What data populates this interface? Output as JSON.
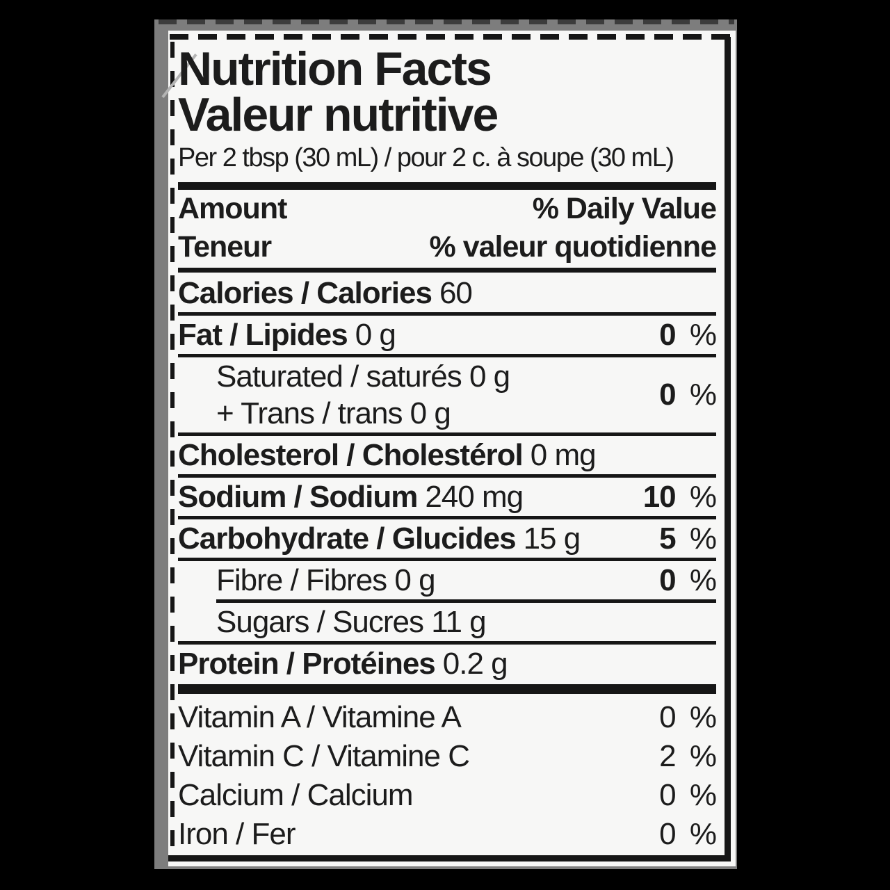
{
  "label": {
    "title_en": "Nutrition Facts",
    "title_fr": "Valeur nutritive",
    "serving": "Per 2 tbsp (30 mL) / pour 2 c. à soupe (30 mL)",
    "percent_sign": "%",
    "header": {
      "amount_en": "Amount",
      "daily_value_en": "% Daily Value",
      "amount_fr": "Teneur",
      "daily_value_fr": "% valeur quotidienne"
    },
    "calories": {
      "label": "Calories / Calories",
      "value": "60"
    },
    "nutrients": [
      {
        "label": "Fat / Lipides",
        "value": "0 g",
        "dv": "0"
      },
      {
        "line1": "Saturated / saturés 0 g",
        "line2": "+ Trans / trans 0 g",
        "dv": "0"
      },
      {
        "label": "Cholesterol / Cholestérol",
        "value": "0 mg"
      },
      {
        "label": "Sodium / Sodium",
        "value": "240 mg",
        "dv": "10"
      },
      {
        "label": "Carbohydrate / Glucides",
        "value": "15 g",
        "dv": "5"
      },
      {
        "text": "Fibre / Fibres 0 g",
        "dv": "0"
      },
      {
        "text": "Sugars / Sucres 11 g"
      },
      {
        "label": "Protein / Protéines",
        "value": "0.2 g"
      }
    ],
    "vitamins": [
      {
        "name": "Vitamin A / Vitamine A",
        "dv": "0"
      },
      {
        "name": "Vitamin C / Vitamine C",
        "dv": "2"
      },
      {
        "name": "Calcium / Calcium",
        "dv": "0"
      },
      {
        "name": "Iron / Fer",
        "dv": "0"
      }
    ]
  }
}
